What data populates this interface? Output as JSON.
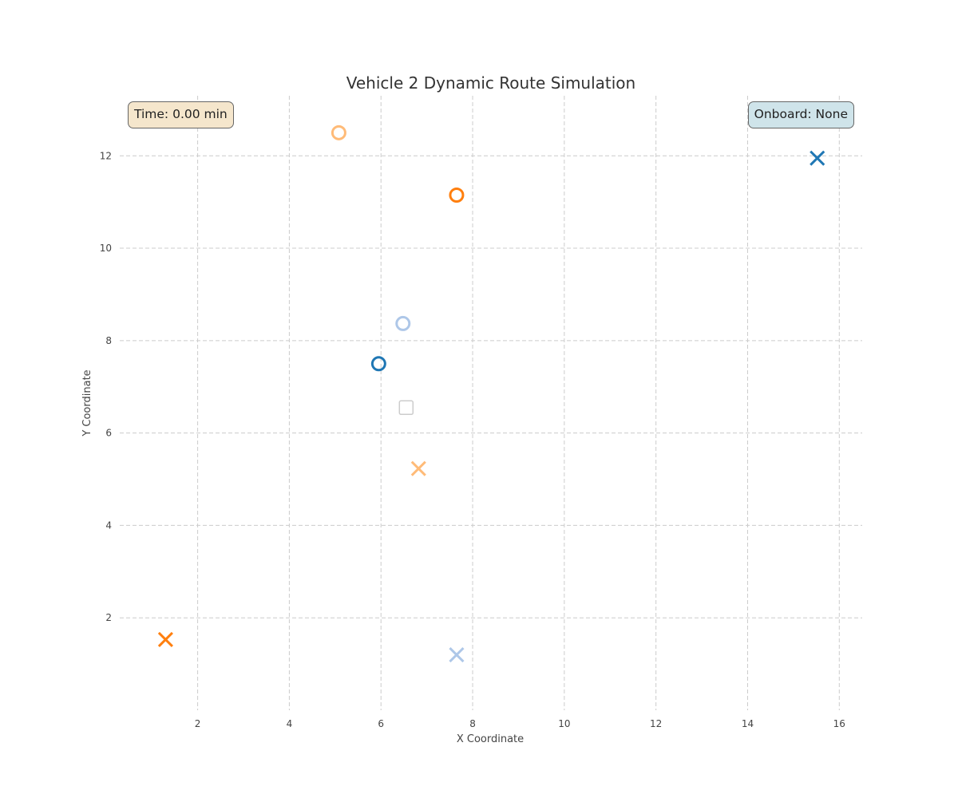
{
  "chart_data": {
    "type": "scatter",
    "title": "Vehicle 2 Dynamic Route Simulation",
    "xlabel": "X Coordinate",
    "ylabel": "Y Coordinate",
    "xlim": [
      0.3,
      16.5
    ],
    "ylim": [
      0,
      13.3
    ],
    "xticks": [
      2,
      4,
      6,
      8,
      10,
      12,
      14,
      16
    ],
    "yticks": [
      2,
      4,
      6,
      8,
      10,
      12
    ],
    "grid": true,
    "points": [
      {
        "role": "pickup",
        "marker": "circle",
        "color": "#ffbb78",
        "x": 5.08,
        "y": 12.5
      },
      {
        "role": "pickup",
        "marker": "circle",
        "color": "#ff7f0e",
        "x": 7.65,
        "y": 11.15
      },
      {
        "role": "pickup",
        "marker": "circle",
        "color": "#aec7e8",
        "x": 6.48,
        "y": 8.37
      },
      {
        "role": "pickup",
        "marker": "circle",
        "color": "#1f77b4",
        "x": 5.95,
        "y": 7.5
      },
      {
        "role": "vehicle",
        "marker": "square",
        "color": "#cccccc",
        "x": 6.55,
        "y": 6.55
      },
      {
        "role": "dropoff",
        "marker": "x",
        "color": "#ffbb78",
        "x": 6.82,
        "y": 5.23
      },
      {
        "role": "dropoff",
        "marker": "x",
        "color": "#1f77b4",
        "x": 15.52,
        "y": 11.95
      },
      {
        "role": "dropoff",
        "marker": "x",
        "color": "#ff7f0e",
        "x": 1.3,
        "y": 1.53
      },
      {
        "role": "dropoff",
        "marker": "x",
        "color": "#aec7e8",
        "x": 7.65,
        "y": 1.2
      }
    ]
  },
  "info": {
    "time_label": "Time: 0.00 min",
    "time_bg": "#f5e6cc",
    "onboard_label": "Onboard: None",
    "onboard_bg": "#cfe4ea"
  }
}
